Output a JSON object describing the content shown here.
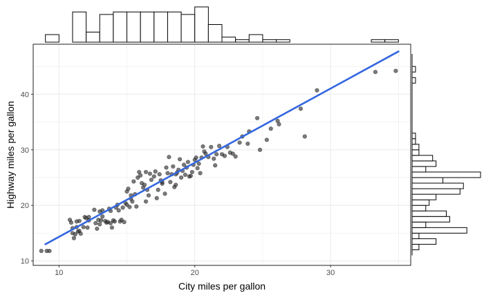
{
  "chart_data": {
    "type": "scatter",
    "xlabel": "City miles per gallon",
    "ylabel": "Highway miles per gallon",
    "xlim": [
      8.1,
      35.9
    ],
    "ylim": [
      9.2,
      49.0
    ],
    "x_ticks": [
      10,
      20,
      30
    ],
    "y_ticks": [
      10,
      20,
      30,
      40
    ],
    "x_tick_labels": [
      "10",
      "20",
      "30"
    ],
    "y_tick_labels": [
      "10",
      "20",
      "30",
      "40"
    ],
    "grid": true,
    "legend": "none",
    "colors": {
      "points": "#333333",
      "fit_line": "#3366e0",
      "grid": "#ebebeb",
      "hist": "#000000"
    },
    "fit_line": {
      "x": [
        9,
        35
      ],
      "y": [
        13.0,
        47.7
      ]
    },
    "points": [
      [
        8.7,
        11.8
      ],
      [
        9.1,
        11.8
      ],
      [
        9.3,
        11.8
      ],
      [
        10.8,
        17.4
      ],
      [
        10.9,
        16.9
      ],
      [
        11.0,
        15.9
      ],
      [
        11.0,
        15.0
      ],
      [
        11.1,
        14.1
      ],
      [
        11.2,
        14.8
      ],
      [
        11.3,
        16.1
      ],
      [
        11.4,
        15.3
      ],
      [
        11.5,
        17.2
      ],
      [
        11.5,
        15.4
      ],
      [
        11.6,
        14.9
      ],
      [
        11.8,
        16.1
      ],
      [
        11.9,
        17.9
      ],
      [
        12.0,
        17.7
      ],
      [
        12.1,
        16.0
      ],
      [
        12.2,
        17.3
      ],
      [
        12.6,
        19.2
      ],
      [
        12.7,
        16.8
      ],
      [
        12.8,
        15.8
      ],
      [
        12.9,
        17.4
      ],
      [
        13.0,
        18.9
      ],
      [
        13.0,
        16.6
      ],
      [
        13.1,
        17.3
      ],
      [
        13.2,
        18.0
      ],
      [
        13.4,
        17.2
      ],
      [
        13.5,
        16.9
      ],
      [
        13.6,
        17.0
      ],
      [
        13.7,
        19.4
      ],
      [
        13.8,
        16.8
      ],
      [
        13.9,
        16.0
      ],
      [
        14.0,
        17.3
      ],
      [
        14.1,
        17.1
      ],
      [
        14.2,
        19.6
      ],
      [
        14.3,
        20.1
      ],
      [
        14.4,
        19.1
      ],
      [
        14.5,
        17.1
      ],
      [
        14.6,
        17.4
      ],
      [
        14.8,
        17.0
      ],
      [
        14.9,
        20.4
      ],
      [
        15.0,
        20.1
      ],
      [
        15.0,
        22.5
      ],
      [
        15.1,
        23.0
      ],
      [
        15.2,
        19.7
      ],
      [
        15.3,
        21.2
      ],
      [
        15.4,
        20.7
      ],
      [
        15.5,
        24.3
      ],
      [
        15.6,
        22.0
      ],
      [
        15.7,
        19.8
      ],
      [
        15.8,
        25.0
      ],
      [
        15.9,
        26.0
      ],
      [
        16.0,
        25.4
      ],
      [
        16.1,
        24.0
      ],
      [
        16.2,
        23.2
      ],
      [
        16.3,
        23.7
      ],
      [
        16.4,
        20.7
      ],
      [
        16.5,
        22.8
      ],
      [
        16.6,
        21.8
      ],
      [
        16.7,
        25.7
      ],
      [
        16.8,
        24.6
      ],
      [
        17.0,
        25.2
      ],
      [
        17.1,
        26.1
      ],
      [
        17.2,
        21.3
      ],
      [
        17.3,
        22.8
      ],
      [
        17.4,
        25.6
      ],
      [
        17.5,
        24.5
      ],
      [
        17.6,
        23.9
      ],
      [
        17.8,
        22.1
      ],
      [
        17.9,
        26.8
      ],
      [
        18.0,
        25.8
      ],
      [
        18.1,
        28.7
      ],
      [
        18.2,
        24.2
      ],
      [
        18.3,
        25.6
      ],
      [
        18.4,
        27.0
      ],
      [
        18.5,
        23.3
      ],
      [
        18.6,
        25.6
      ],
      [
        18.7,
        25.9
      ],
      [
        18.8,
        26.4
      ],
      [
        18.9,
        28.3
      ],
      [
        19.0,
        25.0
      ],
      [
        19.1,
        26.2
      ],
      [
        19.2,
        27.3
      ],
      [
        19.3,
        25.5
      ],
      [
        19.4,
        26.8
      ],
      [
        19.5,
        27.8
      ],
      [
        19.6,
        25.2
      ],
      [
        19.8,
        26.0
      ],
      [
        19.9,
        27.3
      ],
      [
        20.0,
        28.2
      ],
      [
        20.1,
        28.6
      ],
      [
        20.2,
        26.7
      ],
      [
        20.3,
        27.5
      ],
      [
        20.4,
        25.8
      ],
      [
        20.5,
        28.6
      ],
      [
        20.6,
        30.6
      ],
      [
        20.8,
        29.3
      ],
      [
        21.0,
        28.7
      ],
      [
        21.2,
        30.5
      ],
      [
        21.4,
        28.4
      ],
      [
        21.5,
        27.2
      ],
      [
        21.6,
        29.2
      ],
      [
        21.8,
        30.7
      ],
      [
        22.0,
        29.2
      ],
      [
        22.2,
        28.9
      ],
      [
        22.4,
        30.5
      ],
      [
        22.8,
        29.3
      ],
      [
        23.0,
        28.8
      ],
      [
        23.3,
        31.3
      ],
      [
        23.5,
        32.4
      ],
      [
        23.9,
        31.1
      ],
      [
        24.0,
        33.3
      ],
      [
        24.6,
        35.7
      ],
      [
        24.8,
        30.0
      ],
      [
        25.3,
        31.8
      ],
      [
        25.6,
        33.8
      ],
      [
        26.1,
        35.2
      ],
      [
        26.2,
        34.6
      ],
      [
        27.8,
        37.4
      ],
      [
        28.1,
        32.4
      ],
      [
        29.0,
        40.7
      ],
      [
        33.3,
        44.0
      ],
      [
        34.8,
        44.2
      ],
      [
        22.6,
        29.5
      ],
      [
        20.7,
        29.7
      ],
      [
        19.7,
        25.3
      ],
      [
        18.6,
        23.7
      ],
      [
        17.6,
        24.2
      ],
      [
        16.4,
        26.0
      ],
      [
        15.3,
        21.8
      ],
      [
        14.7,
        19.6
      ],
      [
        13.8,
        19.0
      ],
      [
        13.2,
        19.1
      ],
      [
        12.2,
        17.9
      ],
      [
        11.3,
        17.1
      ]
    ],
    "top_histogram": {
      "bins": [
        [
          9,
          10
        ],
        [
          10,
          11
        ],
        [
          11,
          12
        ],
        [
          12,
          13
        ],
        [
          13,
          14
        ],
        [
          14,
          15
        ],
        [
          15,
          16
        ],
        [
          16,
          17
        ],
        [
          17,
          18
        ],
        [
          18,
          19
        ],
        [
          19,
          20
        ],
        [
          20,
          21
        ],
        [
          21,
          22
        ],
        [
          22,
          23
        ],
        [
          23,
          24
        ],
        [
          24,
          25
        ],
        [
          25,
          26
        ],
        [
          26,
          27
        ],
        [
          27,
          28
        ],
        [
          28,
          29
        ],
        [
          29,
          30
        ],
        [
          30,
          31
        ],
        [
          31,
          32
        ],
        [
          32,
          33
        ],
        [
          33,
          34
        ],
        [
          34,
          35
        ]
      ],
      "counts": [
        3,
        0,
        12,
        4,
        11,
        12,
        12,
        12,
        12,
        12,
        11,
        14,
        7,
        2,
        1,
        3,
        1,
        1,
        0,
        0,
        0,
        0,
        0,
        0,
        1,
        1
      ]
    },
    "right_histogram": {
      "bins": [
        [
          11,
          12
        ],
        [
          12,
          13
        ],
        [
          13,
          14
        ],
        [
          14,
          15
        ],
        [
          15,
          16
        ],
        [
          16,
          17
        ],
        [
          17,
          18
        ],
        [
          18,
          19
        ],
        [
          19,
          20
        ],
        [
          20,
          21
        ],
        [
          21,
          22
        ],
        [
          22,
          23
        ],
        [
          23,
          24
        ],
        [
          24,
          25
        ],
        [
          25,
          26
        ],
        [
          26,
          27
        ],
        [
          27,
          28
        ],
        [
          28,
          29
        ],
        [
          29,
          30
        ],
        [
          30,
          31
        ],
        [
          31,
          32
        ],
        [
          32,
          33
        ],
        [
          33,
          34
        ],
        [
          34,
          35
        ],
        [
          35,
          36
        ],
        [
          36,
          37
        ],
        [
          37,
          38
        ],
        [
          38,
          39
        ],
        [
          39,
          40
        ],
        [
          40,
          41
        ],
        [
          41,
          42
        ],
        [
          42,
          43
        ],
        [
          43,
          44
        ],
        [
          44,
          45
        ]
      ],
      "counts": [
        0,
        2,
        7,
        2,
        16,
        4,
        11,
        10,
        4,
        5,
        7,
        14,
        15,
        9,
        20,
        4,
        7,
        6,
        2,
        2,
        1,
        1,
        0,
        0,
        0,
        0,
        0,
        0,
        0,
        0,
        0,
        1,
        0,
        1
      ]
    }
  }
}
